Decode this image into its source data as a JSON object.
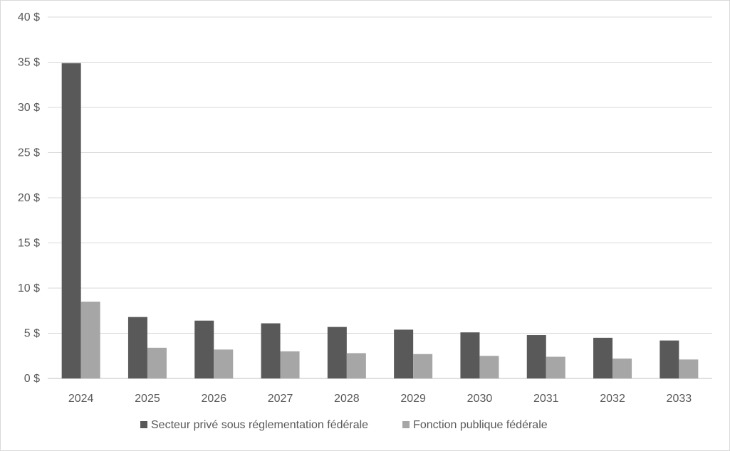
{
  "chart_data": {
    "type": "bar",
    "title": "",
    "xlabel": "",
    "ylabel": "",
    "categories": [
      "2024",
      "2025",
      "2026",
      "2027",
      "2028",
      "2029",
      "2030",
      "2031",
      "2032",
      "2033"
    ],
    "ylim": [
      0,
      40
    ],
    "y_ticks": [
      0,
      5,
      10,
      15,
      20,
      25,
      30,
      35,
      40
    ],
    "y_tick_labels": [
      "0 $",
      "5 $",
      "10 $",
      "15 $",
      "20 $",
      "25 $",
      "30 $",
      "35 $",
      "40 $"
    ],
    "grid": true,
    "legend_position": "bottom",
    "series": [
      {
        "name": "Secteur privé sous réglementation fédérale",
        "color": "#595959",
        "values": [
          34.9,
          6.8,
          6.4,
          6.1,
          5.7,
          5.4,
          5.1,
          4.8,
          4.5,
          4.2
        ]
      },
      {
        "name": "Fonction publique fédérale",
        "color": "#a6a6a6",
        "values": [
          8.5,
          3.4,
          3.2,
          3.0,
          2.8,
          2.7,
          2.5,
          2.4,
          2.2,
          2.1
        ]
      }
    ]
  }
}
